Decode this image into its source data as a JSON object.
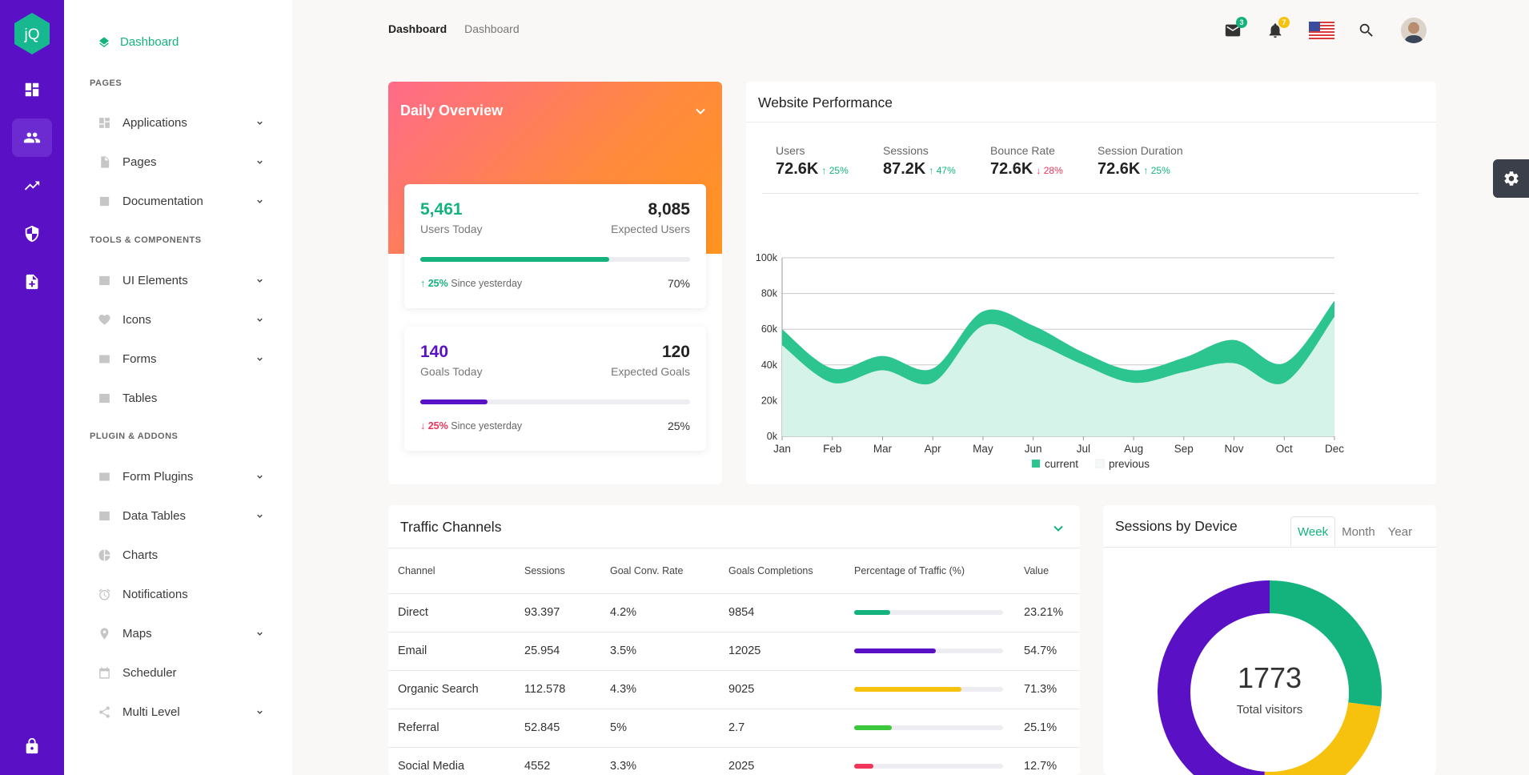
{
  "app": {
    "logo_text": "jQ"
  },
  "colors": {
    "rail": "#5a10c4",
    "accent_green": "#14b37d",
    "purple": "#5a10c4",
    "yellow": "#f7c20e",
    "red": "#f0355a",
    "lime": "#3cc83a"
  },
  "rail": {
    "icons": [
      "dashboard-icon",
      "users-icon",
      "trending-icon",
      "shield-icon",
      "add-document-icon",
      "lock-icon"
    ]
  },
  "sidebar": {
    "top_item": "Dashboard",
    "sections": [
      "Pages",
      "Tools & Components",
      "Plugin & Addons"
    ],
    "items": [
      {
        "label": "Applications",
        "has_children": true
      },
      {
        "label": "Pages",
        "has_children": true
      },
      {
        "label": "Documentation",
        "has_children": true
      },
      {
        "label": "UI Elements",
        "has_children": true
      },
      {
        "label": "Icons",
        "has_children": true
      },
      {
        "label": "Forms",
        "has_children": true
      },
      {
        "label": "Tables",
        "has_children": false
      },
      {
        "label": "Form Plugins",
        "has_children": true
      },
      {
        "label": "Data Tables",
        "has_children": true
      },
      {
        "label": "Charts",
        "has_children": false
      },
      {
        "label": "Notifications",
        "has_children": false
      },
      {
        "label": "Maps",
        "has_children": true
      },
      {
        "label": "Scheduler",
        "has_children": false
      },
      {
        "label": "Multi Level",
        "has_children": true
      }
    ]
  },
  "header": {
    "breadcrumb_current": "Dashboard",
    "breadcrumb_sub": "Dashboard",
    "mail_count": "3",
    "notif_count": "7"
  },
  "overview": {
    "title": "Daily Overview",
    "users": {
      "value": "5,461",
      "label": "Users Today",
      "expected": "8,085",
      "expected_label": "Expected Users",
      "change": "25%",
      "since": "Since yesterday",
      "progress": "70%",
      "progress_value": 0.7
    },
    "goals": {
      "value": "140",
      "label": "Goals Today",
      "expected": "120",
      "expected_label": "Expected Goals",
      "change": "25%",
      "since": "Since yesterday",
      "progress": "25%",
      "progress_value": 0.25
    }
  },
  "performance": {
    "title": "Website Performance",
    "kpis": [
      {
        "label": "Users",
        "value": "72.6K",
        "change": "25%",
        "direction": "up"
      },
      {
        "label": "Sessions",
        "value": "87.2K",
        "change": "47%",
        "direction": "up"
      },
      {
        "label": "Bounce Rate",
        "value": "72.6K",
        "change": "28%",
        "direction": "down"
      },
      {
        "label": "Session Duration",
        "value": "72.6K",
        "change": "25%",
        "direction": "up"
      }
    ]
  },
  "chart_data": {
    "type": "area",
    "categories": [
      "Jan",
      "Feb",
      "Mar",
      "Apr",
      "May",
      "Jun",
      "Jul",
      "Aug",
      "Sep",
      "Nov",
      "Oct",
      "Dec"
    ],
    "series": [
      {
        "name": "current",
        "values": [
          60,
          38,
          45,
          38,
          70,
          62,
          47,
          37,
          44,
          54,
          41,
          76
        ]
      },
      {
        "name": "previous",
        "values": [
          51,
          30,
          37,
          30,
          62,
          53,
          40,
          30,
          36,
          41,
          30,
          67
        ]
      }
    ],
    "ylim": [
      0,
      100
    ],
    "yticks": [
      "0k",
      "20k",
      "40k",
      "60k",
      "80k",
      "100k"
    ],
    "grid": true,
    "legend": "bottom"
  },
  "traffic": {
    "title": "Traffic Channels",
    "columns": [
      "Channel",
      "Sessions",
      "Goal Conv. Rate",
      "Goals Completions",
      "Percentage of Traffic (%)",
      "Value"
    ],
    "rows": [
      {
        "channel": "Direct",
        "sessions": "93.397",
        "conv": "4.2%",
        "completions": "9854",
        "traffic": 0.24,
        "color": "#14b37d",
        "value": "23.21%"
      },
      {
        "channel": "Email",
        "sessions": "25.954",
        "conv": "3.5%",
        "completions": "12025",
        "traffic": 0.55,
        "color": "#5a10c4",
        "value": "54.7%"
      },
      {
        "channel": "Organic Search",
        "sessions": "112.578",
        "conv": "4.3%",
        "completions": "9025",
        "traffic": 0.72,
        "color": "#f7c20e",
        "value": "71.3%"
      },
      {
        "channel": "Referral",
        "sessions": "52.845",
        "conv": "5%",
        "completions": "2.7",
        "traffic": 0.25,
        "color": "#3cc83a",
        "value": "25.1%"
      },
      {
        "channel": "Social Media",
        "sessions": "4552",
        "conv": "3.3%",
        "completions": "2025",
        "traffic": 0.13,
        "color": "#f0355a",
        "value": "12.7%"
      }
    ]
  },
  "device": {
    "title": "Sessions by Device",
    "tabs": [
      "Week",
      "Month",
      "Year"
    ],
    "active_tab": "Week",
    "total": "1773",
    "total_label": "Total visitors",
    "segments": [
      {
        "share": 0.27,
        "color": "#14b37d"
      },
      {
        "share": 0.24,
        "color": "#f7c20e"
      },
      {
        "share": 0.49,
        "color": "#5a10c4"
      }
    ]
  }
}
